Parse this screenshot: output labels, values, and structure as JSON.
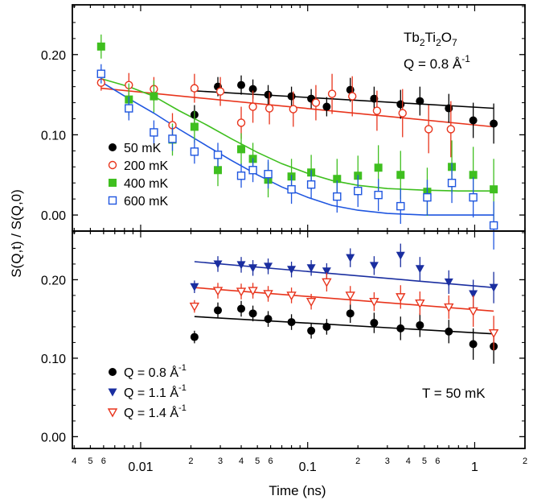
{
  "ylabel": "S(Q,t) / S(Q,0)",
  "xlabel": "Time (ns)",
  "x_major_ticks": [
    {
      "v": 0.01,
      "label": "0.01"
    },
    {
      "v": 0.1,
      "label": "0.1"
    },
    {
      "v": 1,
      "label": "1"
    }
  ],
  "x_minor_labeled": [
    {
      "v": 0.004,
      "label": "4"
    },
    {
      "v": 0.005,
      "label": "5"
    },
    {
      "v": 0.006,
      "label": "6"
    },
    {
      "v": 0.02,
      "label": "2"
    },
    {
      "v": 0.03,
      "label": "3"
    },
    {
      "v": 0.04,
      "label": "4"
    },
    {
      "v": 0.05,
      "label": "5"
    },
    {
      "v": 0.06,
      "label": "6"
    },
    {
      "v": 0.2,
      "label": "2"
    },
    {
      "v": 0.3,
      "label": "3"
    },
    {
      "v": 0.4,
      "label": "4"
    },
    {
      "v": 0.5,
      "label": "5"
    },
    {
      "v": 0.6,
      "label": "6"
    },
    {
      "v": 2,
      "label": "2"
    }
  ],
  "chart_data": [
    {
      "type": "scatter",
      "x_scale": "log",
      "xlim": [
        0.0039,
        2.0
      ],
      "ylim": [
        -0.02,
        0.262
      ],
      "y_ticks": [
        {
          "v": 0.0,
          "label": "0.00"
        },
        {
          "v": 0.1,
          "label": "0.10"
        },
        {
          "v": 0.2,
          "label": "0.20"
        }
      ],
      "annotations": [
        {
          "text": "Tb₂Ti₂O₇",
          "position": "top-right"
        },
        {
          "text": "Q = 0.8 Å⁻¹",
          "position": "top-right"
        }
      ],
      "legend_position": "bottom-left",
      "series": [
        {
          "name": "50 mK",
          "marker": "filled-circle",
          "color": "#000000",
          "x": [
            0.021,
            0.029,
            0.04,
            0.047,
            0.058,
            0.08,
            0.105,
            0.13,
            0.18,
            0.25,
            0.36,
            0.47,
            0.7,
            0.98,
            1.3
          ],
          "y": [
            0.125,
            0.16,
            0.162,
            0.157,
            0.15,
            0.148,
            0.145,
            0.135,
            0.156,
            0.145,
            0.138,
            0.142,
            0.133,
            0.118,
            0.114
          ],
          "err": [
            0.012,
            0.012,
            0.012,
            0.012,
            0.012,
            0.012,
            0.012,
            0.012,
            0.015,
            0.015,
            0.018,
            0.018,
            0.018,
            0.022,
            0.025
          ],
          "fit": {
            "x": [
              0.02,
              1.3
            ],
            "y": [
              0.155,
              0.133
            ]
          }
        },
        {
          "name": "200 mK",
          "marker": "open-circle",
          "color": "#e8341c",
          "x": [
            0.0058,
            0.0085,
            0.012,
            0.0155,
            0.021,
            0.03,
            0.04,
            0.047,
            0.059,
            0.082,
            0.112,
            0.14,
            0.185,
            0.26,
            0.37,
            0.53,
            0.72
          ],
          "y": [
            0.165,
            0.162,
            0.157,
            0.112,
            0.158,
            0.154,
            0.115,
            0.135,
            0.133,
            0.132,
            0.14,
            0.151,
            0.148,
            0.13,
            0.127,
            0.107,
            0.107
          ],
          "err": [
            0.01,
            0.015,
            0.015,
            0.015,
            0.018,
            0.018,
            0.02,
            0.02,
            0.02,
            0.022,
            0.022,
            0.025,
            0.025,
            0.025,
            0.03,
            0.03,
            0.035
          ],
          "fit": {
            "x": [
              0.0058,
              1.3
            ],
            "y": [
              0.158,
              0.11
            ]
          }
        },
        {
          "name": "400 mK",
          "marker": "filled-square",
          "color": "#3fbf1f",
          "x": [
            0.0058,
            0.0085,
            0.012,
            0.0155,
            0.021,
            0.029,
            0.04,
            0.047,
            0.058,
            0.08,
            0.105,
            0.15,
            0.2,
            0.265,
            0.36,
            0.52,
            0.73,
            0.98,
            1.3
          ],
          "y": [
            0.21,
            0.144,
            0.148,
            0.094,
            0.11,
            0.056,
            0.082,
            0.07,
            0.044,
            0.048,
            0.053,
            0.045,
            0.049,
            0.059,
            0.05,
            0.029,
            0.06,
            0.05,
            0.032
          ],
          "err": [
            0.015,
            0.02,
            0.02,
            0.02,
            0.02,
            0.02,
            0.02,
            0.02,
            0.022,
            0.022,
            0.022,
            0.025,
            0.025,
            0.028,
            0.03,
            0.03,
            0.033,
            0.035,
            0.038
          ],
          "fit": {
            "x": [
              0.0058,
              0.0085,
              0.012,
              0.017,
              0.025,
              0.035,
              0.05,
              0.07,
              0.1,
              0.14,
              0.2,
              0.3,
              0.5,
              0.8,
              1.3
            ],
            "y": [
              0.17,
              0.16,
              0.148,
              0.13,
              0.112,
              0.095,
              0.078,
              0.064,
              0.052,
              0.043,
              0.037,
              0.033,
              0.031,
              0.03,
              0.03
            ]
          }
        },
        {
          "name": "600 mK",
          "marker": "open-square",
          "color": "#1f56e0",
          "x": [
            0.0058,
            0.0085,
            0.012,
            0.0155,
            0.021,
            0.029,
            0.04,
            0.047,
            0.058,
            0.08,
            0.105,
            0.15,
            0.2,
            0.265,
            0.36,
            0.52,
            0.73,
            0.98,
            1.3
          ],
          "y": [
            0.176,
            0.133,
            0.103,
            0.095,
            0.079,
            0.075,
            0.049,
            0.056,
            0.051,
            0.032,
            0.038,
            0.023,
            0.03,
            0.025,
            0.011,
            0.022,
            0.04,
            0.022,
            -0.013
          ],
          "err": [
            0.012,
            0.015,
            0.015,
            0.015,
            0.015,
            0.015,
            0.015,
            0.015,
            0.018,
            0.018,
            0.018,
            0.02,
            0.02,
            0.02,
            0.022,
            0.022,
            0.025,
            0.025,
            0.03
          ],
          "fit": {
            "x": [
              0.0058,
              0.0085,
              0.012,
              0.017,
              0.025,
              0.035,
              0.05,
              0.07,
              0.1,
              0.14,
              0.2,
              0.3,
              0.5,
              0.8,
              1.3
            ],
            "y": [
              0.166,
              0.145,
              0.127,
              0.107,
              0.086,
              0.068,
              0.05,
              0.035,
              0.022,
              0.012,
              0.006,
              0.002,
              0.0,
              0.0,
              0.0
            ]
          }
        }
      ]
    },
    {
      "type": "scatter",
      "x_scale": "log",
      "xlim": [
        0.0039,
        2.0
      ],
      "ylim": [
        -0.015,
        0.262
      ],
      "y_ticks": [
        {
          "v": 0.0,
          "label": "0.00"
        },
        {
          "v": 0.1,
          "label": "0.10"
        },
        {
          "v": 0.2,
          "label": "0.20"
        }
      ],
      "annotations": [
        {
          "text": "T = 50 mK",
          "position": "bottom-right"
        }
      ],
      "legend_position": "bottom-left",
      "series": [
        {
          "name": "Q = 0.8 Å⁻¹",
          "marker": "filled-circle",
          "color": "#000000",
          "x": [
            0.021,
            0.029,
            0.04,
            0.047,
            0.058,
            0.08,
            0.105,
            0.13,
            0.18,
            0.25,
            0.36,
            0.47,
            0.7,
            0.98,
            1.3
          ],
          "y": [
            0.127,
            0.161,
            0.163,
            0.157,
            0.15,
            0.146,
            0.135,
            0.14,
            0.157,
            0.145,
            0.138,
            0.142,
            0.134,
            0.118,
            0.115
          ],
          "err": [
            0.008,
            0.01,
            0.01,
            0.01,
            0.01,
            0.01,
            0.01,
            0.01,
            0.012,
            0.013,
            0.015,
            0.015,
            0.015,
            0.02,
            0.022
          ],
          "fit": {
            "x": [
              0.021,
              1.3
            ],
            "y": [
              0.153,
              0.131
            ]
          }
        },
        {
          "name": "Q = 1.1 Å⁻¹",
          "marker": "filled-triangle-down",
          "color": "#1a2ea0",
          "x": [
            0.021,
            0.029,
            0.04,
            0.047,
            0.058,
            0.08,
            0.105,
            0.13,
            0.18,
            0.25,
            0.36,
            0.47,
            0.7,
            0.98,
            1.3
          ],
          "y": [
            0.191,
            0.22,
            0.219,
            0.215,
            0.217,
            0.213,
            0.215,
            0.211,
            0.228,
            0.218,
            0.231,
            0.214,
            0.197,
            0.182,
            0.19
          ],
          "err": [
            0.008,
            0.01,
            0.01,
            0.01,
            0.01,
            0.01,
            0.01,
            0.01,
            0.012,
            0.012,
            0.015,
            0.015,
            0.015,
            0.018,
            0.02
          ],
          "fit": {
            "x": [
              0.021,
              1.3
            ],
            "y": [
              0.223,
              0.19
            ]
          }
        },
        {
          "name": "Q = 1.4 Å⁻¹",
          "marker": "open-triangle-down",
          "color": "#e8341c",
          "x": [
            0.021,
            0.029,
            0.04,
            0.047,
            0.058,
            0.08,
            0.105,
            0.13,
            0.18,
            0.25,
            0.36,
            0.47,
            0.7,
            0.98,
            1.3
          ],
          "y": [
            0.166,
            0.186,
            0.185,
            0.186,
            0.182,
            0.18,
            0.172,
            0.197,
            0.18,
            0.172,
            0.178,
            0.17,
            0.165,
            0.16,
            0.132
          ],
          "err": [
            0.008,
            0.01,
            0.01,
            0.01,
            0.01,
            0.01,
            0.01,
            0.012,
            0.012,
            0.012,
            0.015,
            0.015,
            0.015,
            0.02,
            0.022
          ],
          "fit": {
            "x": [
              0.021,
              1.3
            ],
            "y": [
              0.19,
              0.16
            ]
          }
        }
      ]
    }
  ]
}
